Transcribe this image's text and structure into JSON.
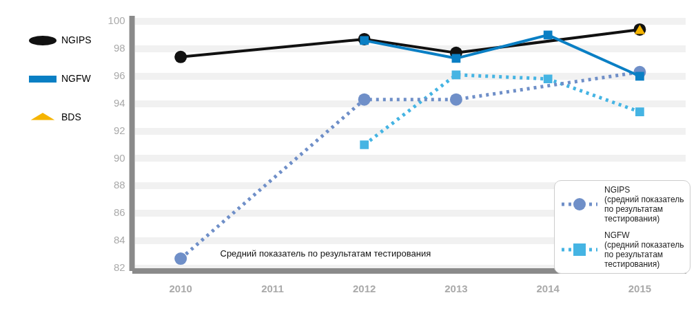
{
  "chart_data": {
    "type": "line",
    "categories": [
      "2010",
      "2011",
      "2012",
      "2013",
      "2014",
      "2015"
    ],
    "series": [
      {
        "name": "NGIPS",
        "color": "#111111",
        "marker": "circle",
        "line_style": "solid",
        "values": [
          97.4,
          null,
          98.7,
          97.7,
          null,
          99.4
        ]
      },
      {
        "name": "NGFW",
        "color": "#0a7fc4",
        "marker": "square",
        "line_style": "solid",
        "values": [
          null,
          null,
          98.6,
          97.3,
          99.0,
          96.0
        ]
      },
      {
        "name": "BDS",
        "color": "#f5b400",
        "marker": "triangle",
        "line_style": "solid",
        "values": [
          null,
          null,
          null,
          null,
          null,
          99.3
        ]
      },
      {
        "name": "NGIPS\n(средний показатель\nпо результатам\nтестирования)",
        "color": "#6f8fc8",
        "marker": "circle",
        "line_style": "dotted",
        "values": [
          82.7,
          null,
          94.3,
          94.3,
          null,
          96.3
        ]
      },
      {
        "name": "NGFW\n(средний показатель\nпо результатам\nтестирования)",
        "color": "#45b4e3",
        "marker": "square",
        "line_style": "dotted",
        "values": [
          null,
          null,
          91.0,
          96.1,
          95.8,
          93.4
        ]
      }
    ],
    "ylim": [
      81.8,
      100.4
    ],
    "yticks": [
      82,
      84,
      86,
      88,
      90,
      92,
      94,
      96,
      98,
      100
    ],
    "grid": "y",
    "legend": "left",
    "annotations": [
      "Средний показатель по результатам тестирования"
    ]
  }
}
